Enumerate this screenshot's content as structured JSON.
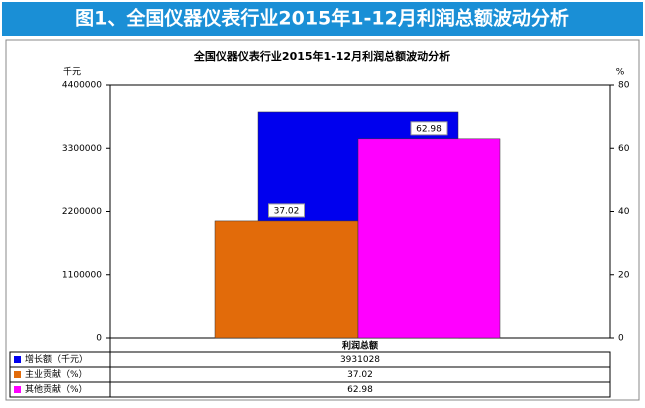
{
  "banner_title": "图1、全国仪器仪表行业2015年1-12月利润总额波动分析",
  "chart_data": {
    "type": "bar",
    "title": "全国仪器仪表行业2015年1-12月利润总额波动分析",
    "y_unit": "千元",
    "y2_unit": "%",
    "categories": [
      "利润总额"
    ],
    "series": [
      {
        "name": "增长额（千元）",
        "color": "#0000ee",
        "values": [
          3931028
        ],
        "data_labels": false
      },
      {
        "name": "主业贡献（%）",
        "color": "#e26b0a",
        "values": [
          37.02
        ],
        "axis": "y2",
        "data_labels": true
      },
      {
        "name": "其他贡献（%）",
        "color": "#ff00ff",
        "values": [
          62.98
        ],
        "axis": "y2",
        "data_labels": true
      }
    ],
    "ylim": [
      0,
      4400000
    ],
    "yticks": [
      0,
      1100000,
      2200000,
      3300000,
      4400000
    ],
    "y2lim": [
      0,
      80
    ],
    "y2ticks": [
      0,
      20,
      40,
      60,
      80
    ],
    "data_table": true
  }
}
